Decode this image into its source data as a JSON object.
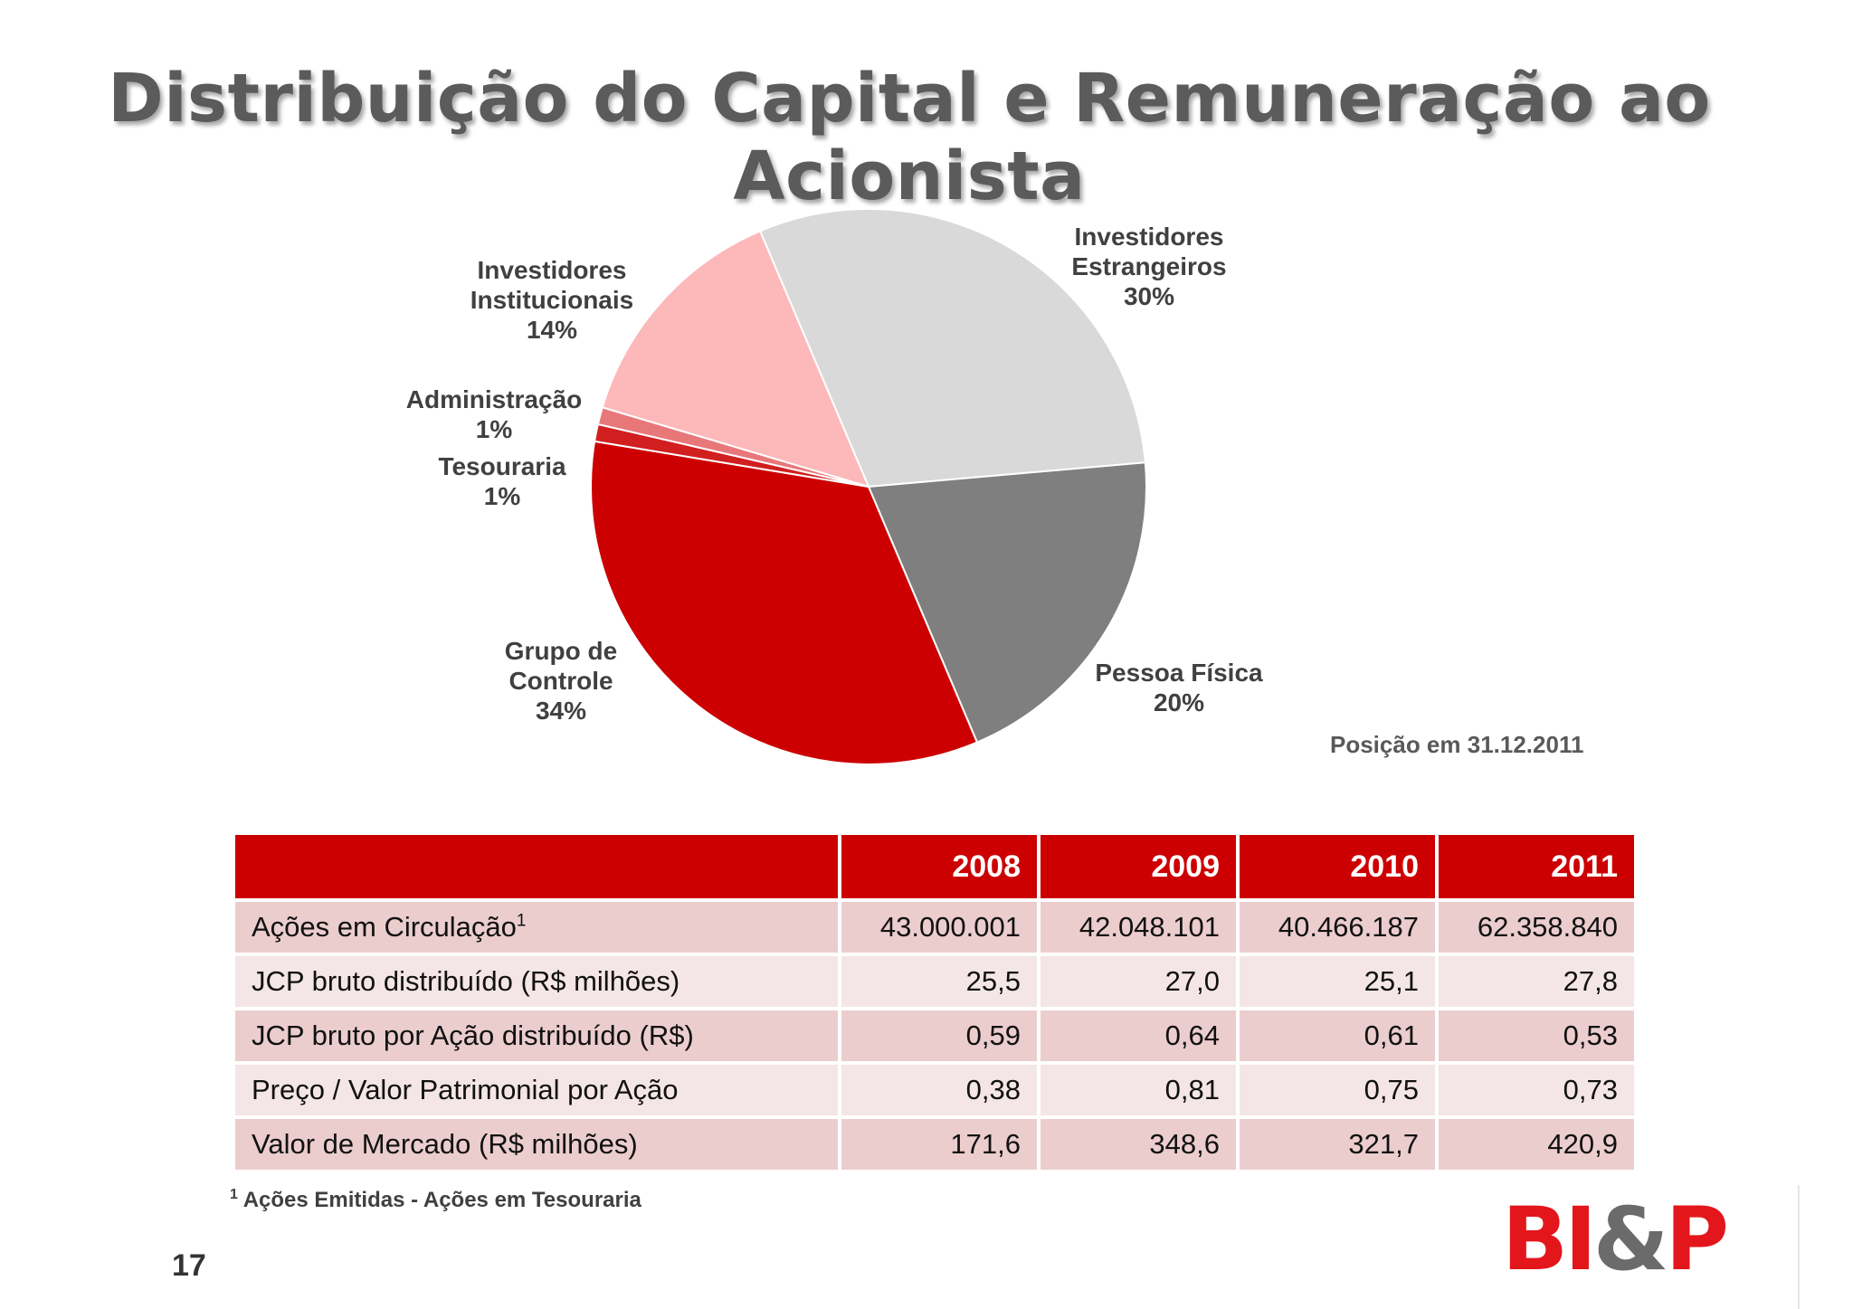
{
  "title": "Distribuição do Capital e Remuneração ao Acionista",
  "chart_data": {
    "type": "pie",
    "title": "",
    "slices": [
      {
        "name": "Investidores Estrangeiros",
        "value": 30,
        "label_lines": [
          "Investidores",
          "Estrangeiros",
          "30%"
        ],
        "color": "#d9d9d9"
      },
      {
        "name": "Pessoa Física",
        "value": 20,
        "label_lines": [
          "Pessoa Física",
          "20%"
        ],
        "color": "#7f7f7f"
      },
      {
        "name": "Grupo de Controle",
        "value": 34,
        "label_lines": [
          "Grupo de",
          "Controle",
          "34%"
        ],
        "color": "#cc0000"
      },
      {
        "name": "Tesouraria",
        "value": 1,
        "label_lines": [
          "Tesouraria",
          "1%"
        ],
        "color": "#d11f1f"
      },
      {
        "name": "Administração",
        "value": 1,
        "label_lines": [
          "Administração",
          "1%"
        ],
        "color": "#e8777a"
      },
      {
        "name": "Investidores Institucionais",
        "value": 14,
        "label_lines": [
          "Investidores",
          "Institucionais",
          "14%"
        ],
        "color": "#fdb8b9"
      }
    ]
  },
  "position_note": "Posição em 31.12.2011",
  "table": {
    "headers": [
      "",
      "2008",
      "2009",
      "2010",
      "2011"
    ],
    "rows": [
      {
        "label": "Ações em Circulação",
        "sup": "1",
        "values": [
          "43.000.001",
          "42.048.101",
          "40.466.187",
          "62.358.840"
        ]
      },
      {
        "label": "JCP bruto distribuído (R$ milhões)",
        "values": [
          "25,5",
          "27,0",
          "25,1",
          "27,8"
        ]
      },
      {
        "label": "JCP bruto por Ação distribuído (R$)",
        "values": [
          "0,59",
          "0,64",
          "0,61",
          "0,53"
        ]
      },
      {
        "label": "Preço / Valor Patrimonial por Ação",
        "values": [
          "0,38",
          "0,81",
          "0,75",
          "0,73"
        ]
      },
      {
        "label": "Valor de Mercado (R$ milhões)",
        "values": [
          "171,6",
          "348,6",
          "321,7",
          "420,9"
        ]
      }
    ]
  },
  "footnote": {
    "marker": "1",
    "text": "Ações Emitidas - Ações em Tesouraria"
  },
  "page_number": "17",
  "logo": {
    "part1": "BI",
    "part2": "&",
    "part3": "P"
  }
}
